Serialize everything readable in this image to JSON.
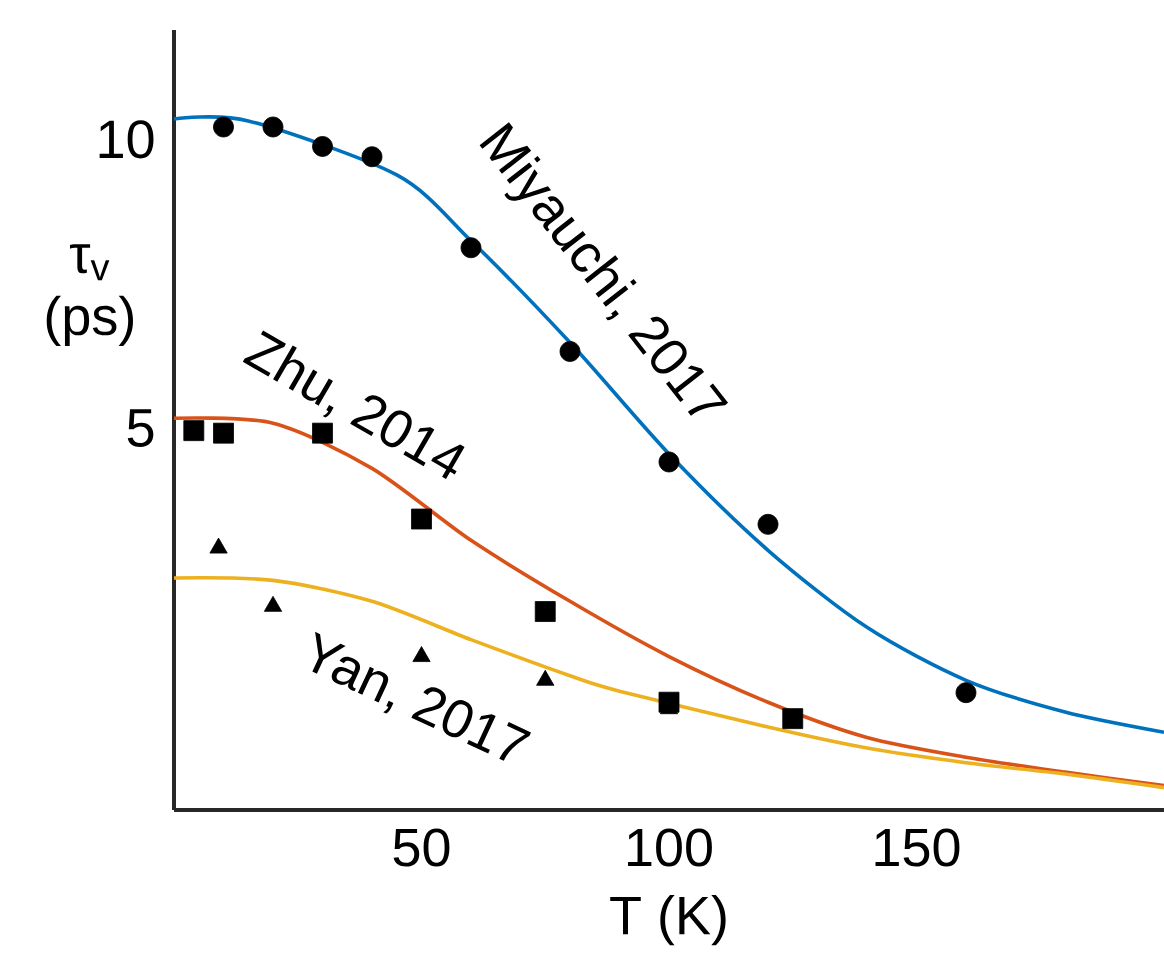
{
  "chart_data": {
    "type": "line",
    "xlabel": "T (K)",
    "ylabel": "τ$_{v}$ (ps)",
    "log": "y",
    "xlim": [
      0,
      200
    ],
    "ylim": [
      2,
      13
    ],
    "xticks": [
      50,
      100,
      150
    ],
    "yticks": [
      5,
      10
    ],
    "series": [
      {
        "type": "scatter",
        "marker": "circle",
        "color": "#000000",
        "x": [
          10,
          20,
          30,
          40,
          60,
          80,
          100,
          120,
          160
        ],
        "values": [
          10.3,
          10.3,
          9.83,
          9.59,
          7.71,
          6.01,
          4.61,
          3.97,
          2.65
        ]
      },
      {
        "type": "scatter",
        "marker": "square",
        "color": "#000000",
        "x": [
          4,
          10,
          30,
          50,
          75,
          100,
          125
        ],
        "values": [
          4.97,
          4.94,
          4.94,
          4.02,
          3.22,
          2.59,
          2.49
        ]
      },
      {
        "type": "scatter",
        "marker": "triangle",
        "color": "#000000",
        "x": [
          9,
          20,
          50,
          75,
          100
        ],
        "values": [
          3.75,
          3.26,
          2.89,
          2.73,
          2.55
        ]
      },
      {
        "name": "Miyauchi, 2017",
        "color": "#0072bd",
        "x": [
          0,
          15,
          45,
          60,
          80,
          100,
          120,
          140,
          160,
          180,
          200
        ],
        "values": [
          10.5,
          10.45,
          9.18,
          7.84,
          6.14,
          4.7,
          3.73,
          3.1,
          2.73,
          2.53,
          2.41
        ]
      },
      {
        "name": "Zhu, 2014",
        "color": "#d95319",
        "x": [
          0,
          20,
          40,
          60,
          80,
          100,
          120,
          140,
          160,
          180,
          200
        ],
        "values": [
          5.12,
          5.06,
          4.54,
          3.82,
          3.3,
          2.89,
          2.59,
          2.38,
          2.27,
          2.19,
          2.12
        ]
      },
      {
        "name": "Yan, 2017",
        "color": "#edb120",
        "x": [
          0,
          20,
          40,
          60,
          80,
          90,
          120,
          140,
          160,
          180,
          200
        ],
        "values": [
          3.49,
          3.47,
          3.3,
          3.01,
          2.76,
          2.66,
          2.44,
          2.32,
          2.24,
          2.18,
          2.11
        ]
      }
    ]
  }
}
